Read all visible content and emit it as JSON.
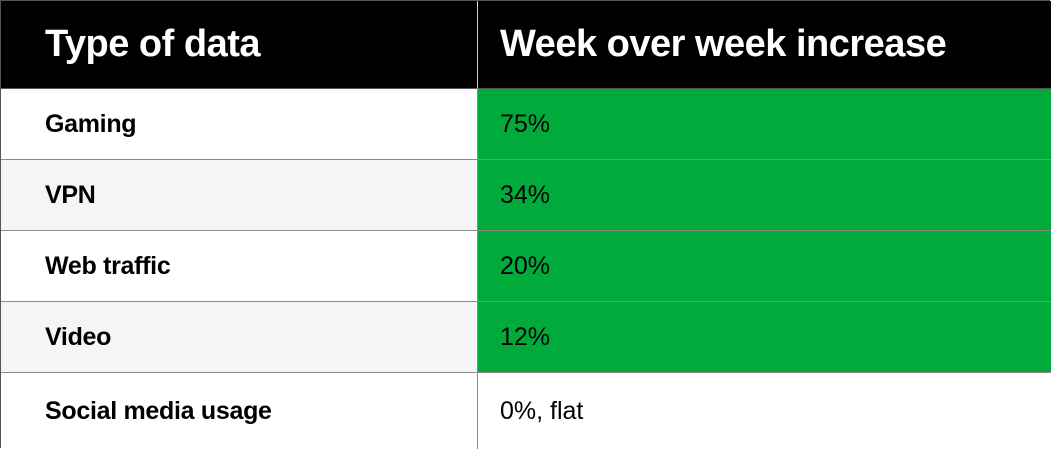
{
  "table": {
    "headers": [
      "Type of data",
      "Week over week increase"
    ],
    "rows": [
      {
        "type": "Gaming",
        "increase": "75%",
        "highlight": true
      },
      {
        "type": "VPN",
        "increase": "34%",
        "highlight": true
      },
      {
        "type": "Web traffic",
        "increase": "20%",
        "highlight": true
      },
      {
        "type": "Video",
        "increase": "12%",
        "highlight": true
      },
      {
        "type": "Social media usage",
        "increase": "0%, flat",
        "highlight": false
      }
    ]
  },
  "colors": {
    "header_bg": "#000000",
    "header_text": "#ffffff",
    "highlight_green": "#00ab3c",
    "alt_row": "#f5f5f5"
  }
}
